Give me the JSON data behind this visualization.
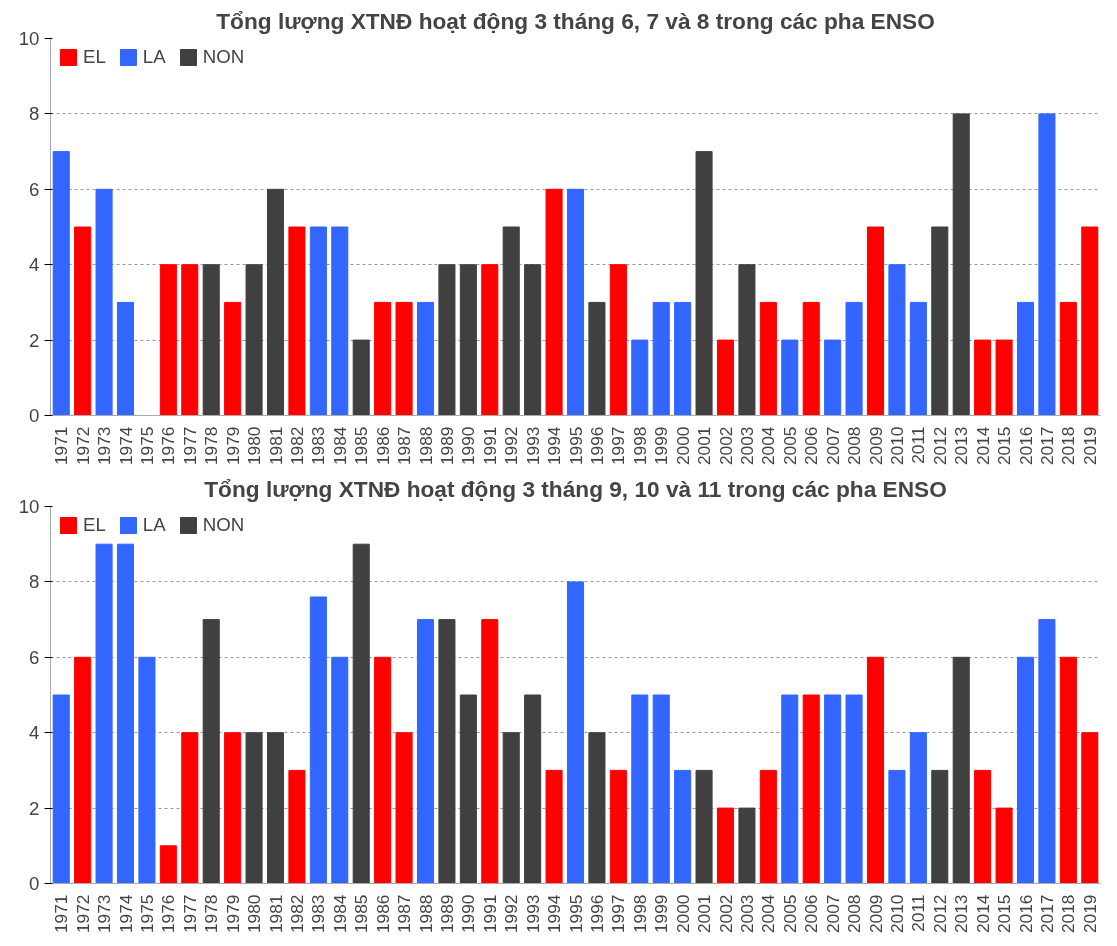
{
  "chart_data": [
    {
      "type": "bar",
      "title": "Tổng lượng XTNĐ hoạt động 3 tháng 6, 7 và 8 trong các pha ENSO",
      "categories": [
        "1971",
        "1972",
        "1973",
        "1974",
        "1975",
        "1976",
        "1977",
        "1978",
        "1979",
        "1980",
        "1981",
        "1982",
        "1983",
        "1984",
        "1985",
        "1986",
        "1987",
        "1988",
        "1989",
        "1990",
        "1991",
        "1992",
        "1993",
        "1994",
        "1995",
        "1996",
        "1997",
        "1998",
        "1999",
        "2000",
        "2001",
        "2002",
        "2003",
        "2004",
        "2005",
        "2006",
        "2007",
        "2008",
        "2009",
        "2010",
        "2011",
        "2012",
        "2013",
        "2014",
        "2015",
        "2016",
        "2017",
        "2018",
        "2019"
      ],
      "ylim": [
        0,
        10
      ],
      "yticks": [
        0,
        2,
        4,
        6,
        8,
        10
      ],
      "grid": "y",
      "legend": "top left",
      "series": [
        {
          "name": "EL",
          "color": "#ff0000",
          "values": [
            null,
            5,
            null,
            null,
            null,
            4,
            4,
            null,
            3,
            null,
            null,
            5,
            null,
            null,
            null,
            3,
            3,
            null,
            null,
            null,
            4,
            null,
            null,
            6,
            null,
            null,
            4,
            null,
            null,
            null,
            null,
            2,
            null,
            3,
            null,
            3,
            null,
            null,
            5,
            null,
            null,
            null,
            null,
            2,
            2,
            null,
            null,
            3,
            5
          ]
        },
        {
          "name": "LA",
          "color": "#3366ff",
          "values": [
            7,
            null,
            6,
            3,
            null,
            null,
            null,
            null,
            null,
            null,
            null,
            null,
            5,
            5,
            null,
            null,
            null,
            3,
            null,
            null,
            null,
            null,
            null,
            null,
            6,
            null,
            null,
            2,
            3,
            3,
            null,
            null,
            null,
            null,
            2,
            null,
            2,
            3,
            null,
            4,
            3,
            null,
            null,
            null,
            null,
            3,
            8,
            null,
            null
          ]
        },
        {
          "name": "NON",
          "color": "#404040",
          "values": [
            null,
            null,
            null,
            null,
            null,
            null,
            null,
            4,
            null,
            4,
            6,
            null,
            null,
            null,
            2,
            null,
            null,
            null,
            4,
            4,
            null,
            5,
            4,
            null,
            null,
            3,
            null,
            null,
            null,
            null,
            7,
            null,
            4,
            null,
            null,
            null,
            null,
            null,
            null,
            null,
            null,
            5,
            8,
            null,
            null,
            null,
            null,
            null,
            null
          ]
        }
      ]
    },
    {
      "type": "bar",
      "title": "Tổng lượng XTNĐ hoạt động 3 tháng 9, 10 và 11 trong các pha ENSO",
      "categories": [
        "1971",
        "1972",
        "1973",
        "1974",
        "1975",
        "1976",
        "1977",
        "1978",
        "1979",
        "1980",
        "1981",
        "1982",
        "1983",
        "1984",
        "1985",
        "1986",
        "1987",
        "1988",
        "1989",
        "1990",
        "1991",
        "1992",
        "1993",
        "1994",
        "1995",
        "1996",
        "1997",
        "1998",
        "1999",
        "2000",
        "2001",
        "2002",
        "2003",
        "2004",
        "2005",
        "2006",
        "2007",
        "2008",
        "2009",
        "2010",
        "2011",
        "2012",
        "2013",
        "2014",
        "2015",
        "2016",
        "2017",
        "2018",
        "2019"
      ],
      "ylim": [
        0,
        10
      ],
      "yticks": [
        0,
        2,
        4,
        6,
        8,
        10
      ],
      "grid": "y",
      "legend": "top left",
      "series": [
        {
          "name": "EL",
          "color": "#ff0000",
          "values": [
            null,
            6,
            null,
            null,
            null,
            1,
            4,
            null,
            4,
            null,
            null,
            3,
            null,
            null,
            null,
            6,
            4,
            null,
            null,
            null,
            7,
            null,
            null,
            3,
            null,
            null,
            3,
            null,
            null,
            null,
            null,
            2,
            null,
            3,
            null,
            5,
            null,
            null,
            6,
            null,
            null,
            null,
            null,
            3,
            2,
            null,
            null,
            6,
            4
          ]
        },
        {
          "name": "LA",
          "color": "#3366ff",
          "values": [
            5,
            null,
            9,
            9,
            6,
            null,
            null,
            null,
            null,
            null,
            null,
            null,
            7.6,
            6,
            null,
            null,
            null,
            7,
            null,
            null,
            null,
            null,
            null,
            null,
            8,
            null,
            null,
            5,
            5,
            3,
            null,
            null,
            null,
            null,
            5,
            null,
            5,
            5,
            null,
            3,
            4,
            null,
            null,
            null,
            null,
            6,
            7,
            null,
            null
          ]
        },
        {
          "name": "NON",
          "color": "#404040",
          "values": [
            null,
            null,
            null,
            null,
            null,
            null,
            null,
            7,
            null,
            4,
            4,
            null,
            null,
            null,
            9,
            null,
            null,
            null,
            7,
            5,
            null,
            4,
            5,
            null,
            null,
            4,
            null,
            null,
            null,
            null,
            3,
            null,
            2,
            null,
            null,
            null,
            null,
            null,
            null,
            null,
            null,
            3,
            6,
            null,
            null,
            null,
            null,
            null,
            null
          ]
        }
      ]
    }
  ]
}
